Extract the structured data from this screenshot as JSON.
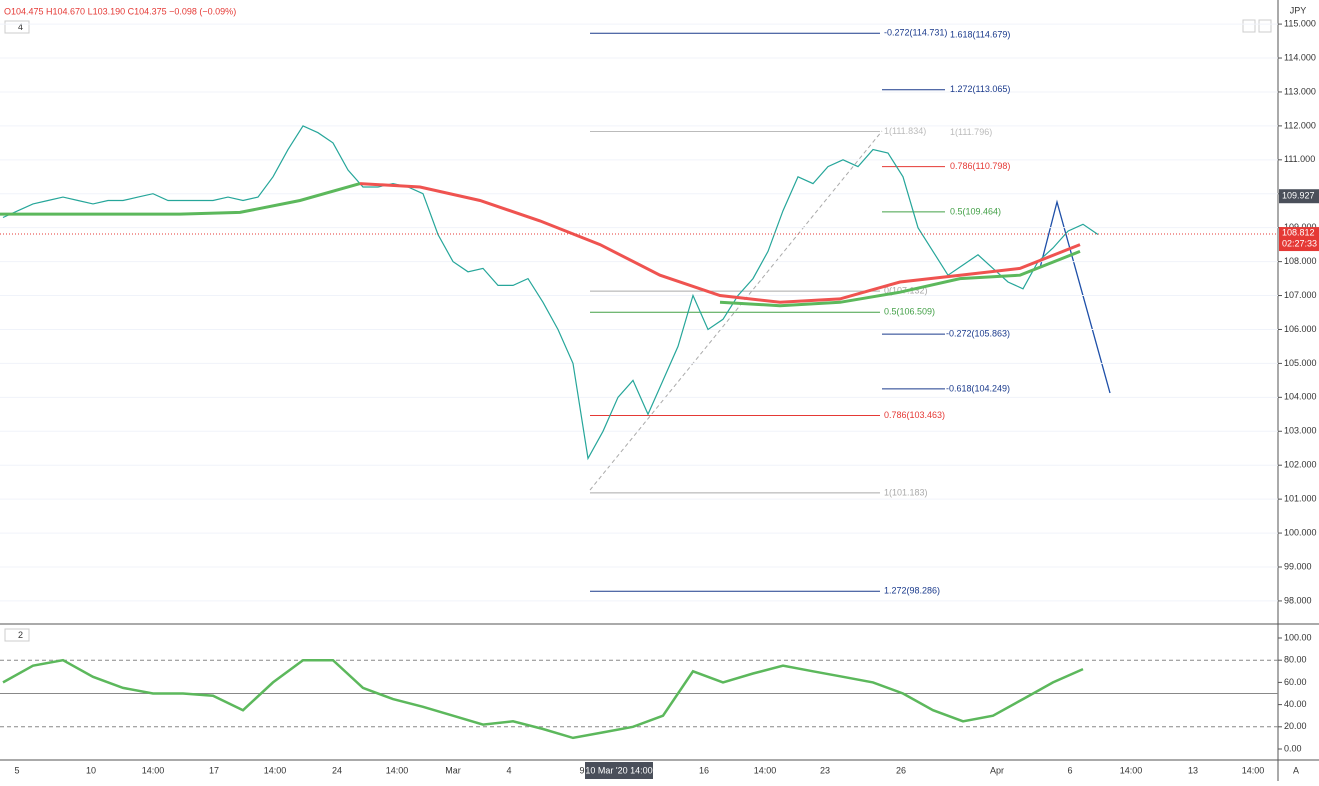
{
  "chart_data": {
    "type": "line",
    "header": {
      "ohlc": "O104.475 H104.670 L103.190 C104.375 −0.098 (−0.09%)",
      "pane_count": "4",
      "osc_pane_count": "2"
    },
    "currency": "JPY",
    "price_label": {
      "value": 108.812,
      "label": "108.812",
      "countdown": "02:27:33"
    },
    "crosshair_label": {
      "value": 109.927,
      "label": "109.927"
    },
    "x_labels": [
      "5",
      "10",
      "14:00",
      "17",
      "14:00",
      "24",
      "14:00",
      "Mar",
      "4",
      "9",
      "16",
      "14:00",
      "23",
      "26",
      "Apr",
      "6",
      "14:00",
      "13",
      "14:00"
    ],
    "crosshair_time": "10 Mar '20  14:00",
    "scale_mode": "A",
    "ylim": [
      97.32,
      115.71
    ],
    "yticks": [
      {
        "value": 98,
        "label": "98.000"
      },
      {
        "value": 99,
        "label": "99.000"
      },
      {
        "value": 100,
        "label": "100.000"
      },
      {
        "value": 101,
        "label": "101.000"
      },
      {
        "value": 102,
        "label": "102.000"
      },
      {
        "value": 103,
        "label": "103.000"
      },
      {
        "value": 104,
        "label": "104.000"
      },
      {
        "value": 105,
        "label": "105.000"
      },
      {
        "value": 106,
        "label": "106.000"
      },
      {
        "value": 107,
        "label": "107.000"
      },
      {
        "value": 108,
        "label": "108.000"
      },
      {
        "value": 109,
        "label": "109.000"
      },
      {
        "value": 110,
        "label": "110.000"
      },
      {
        "value": 111,
        "label": "111.000"
      },
      {
        "value": 112,
        "label": "112.000"
      },
      {
        "value": 113,
        "label": "113.000"
      },
      {
        "value": 114,
        "label": "114.000"
      },
      {
        "value": 115,
        "label": "115.000"
      }
    ],
    "series": [
      {
        "name": "price",
        "color": "#26a69a",
        "values": [
          109.3,
          109.5,
          109.7,
          109.8,
          109.9,
          109.8,
          109.7,
          109.8,
          109.8,
          109.9,
          110.0,
          109.8,
          109.8,
          109.8,
          109.8,
          109.9,
          109.8,
          109.9,
          110.5,
          111.3,
          112.0,
          111.8,
          111.5,
          110.7,
          110.2,
          110.2,
          110.3,
          110.2,
          110.0,
          108.8,
          108.0,
          107.7,
          107.8,
          107.3,
          107.3,
          107.5,
          106.8,
          106.0,
          105.0,
          102.2,
          103.0,
          104.0,
          104.5,
          103.5,
          104.5,
          105.5,
          107.0,
          106.0,
          106.3,
          107.0,
          107.5,
          108.3,
          109.5,
          110.5,
          110.3,
          110.8,
          111.0,
          110.8,
          111.3,
          111.2,
          110.5,
          109.0,
          108.3,
          107.6,
          107.9,
          108.2,
          107.8,
          107.4,
          107.2,
          108.0,
          108.4,
          108.9,
          109.1,
          108.8
        ]
      },
      {
        "name": "ma-green",
        "color": "#5cb85c",
        "values": [
          109.4,
          109.4,
          109.4,
          109.4,
          109.45,
          109.8,
          110.3,
          null,
          null,
          null,
          null,
          null,
          106.8,
          106.7,
          106.8,
          107.1,
          107.5,
          107.6,
          108.3
        ]
      },
      {
        "name": "ma-red",
        "color": "#ef5350",
        "values": [
          null,
          null,
          null,
          null,
          null,
          null,
          110.3,
          110.2,
          109.8,
          109.2,
          108.5,
          107.6,
          107.0,
          106.8,
          106.9,
          107.4,
          107.6,
          107.8,
          108.5
        ]
      }
    ],
    "fib_levels": [
      {
        "label": "-0.272(114.731)",
        "value": 114.731,
        "color": "#1a3a8c"
      },
      {
        "label": "1.618(114.679)",
        "value": 114.679,
        "color": "#1a3a8c"
      },
      {
        "label": "1.272(113.065)",
        "value": 113.065,
        "color": "#1a3a8c"
      },
      {
        "label": "1(111.834)",
        "value": 111.834,
        "color": "#bbbbbb"
      },
      {
        "label": "1(111.796)",
        "value": 111.796,
        "color": "#bbbbbb"
      },
      {
        "label": "0.786(110.798)",
        "value": 110.798,
        "color": "#e53935"
      },
      {
        "label": "0.5(109.464)",
        "value": 109.464,
        "color": "#43a047"
      },
      {
        "label": "0(107.132)",
        "value": 107.132,
        "color": "#aaaaaa"
      },
      {
        "label": "0.5(106.509)",
        "value": 106.509,
        "color": "#43a047"
      },
      {
        "label": "-0.272(105.863)",
        "value": 105.863,
        "color": "#1a3a8c"
      },
      {
        "label": "-0.618(104.249)",
        "value": 104.249,
        "color": "#1a3a8c"
      },
      {
        "label": "0.786(103.463)",
        "value": 103.463,
        "color": "#e53935"
      },
      {
        "label": "1(101.183)",
        "value": 101.183,
        "color": "#aaaaaa"
      },
      {
        "label": "1.272(98.286)",
        "value": 98.286,
        "color": "#1a3a8c"
      }
    ],
    "oscillator": {
      "y2lim": [
        -9.9,
        109.9
      ],
      "y2ticks": [
        {
          "value": 0,
          "label": "0.00"
        },
        {
          "value": 20,
          "label": "20.00"
        },
        {
          "value": 40,
          "label": "40.00"
        },
        {
          "value": 60,
          "label": "60.00"
        },
        {
          "value": 80,
          "label": "80.00"
        },
        {
          "value": 100,
          "label": "100.00"
        }
      ],
      "levels": [
        80,
        50,
        20
      ],
      "series": [
        {
          "name": "oscillator",
          "color": "#5cb85c",
          "axis": "y2",
          "values": [
            60,
            75,
            80,
            65,
            55,
            50,
            50,
            48,
            35,
            60,
            80,
            80,
            55,
            45,
            38,
            30,
            22,
            25,
            18,
            10,
            15,
            20,
            30,
            70,
            60,
            68,
            75,
            70,
            65,
            60,
            50,
            35,
            25,
            30,
            45,
            60,
            72
          ]
        }
      ]
    }
  }
}
